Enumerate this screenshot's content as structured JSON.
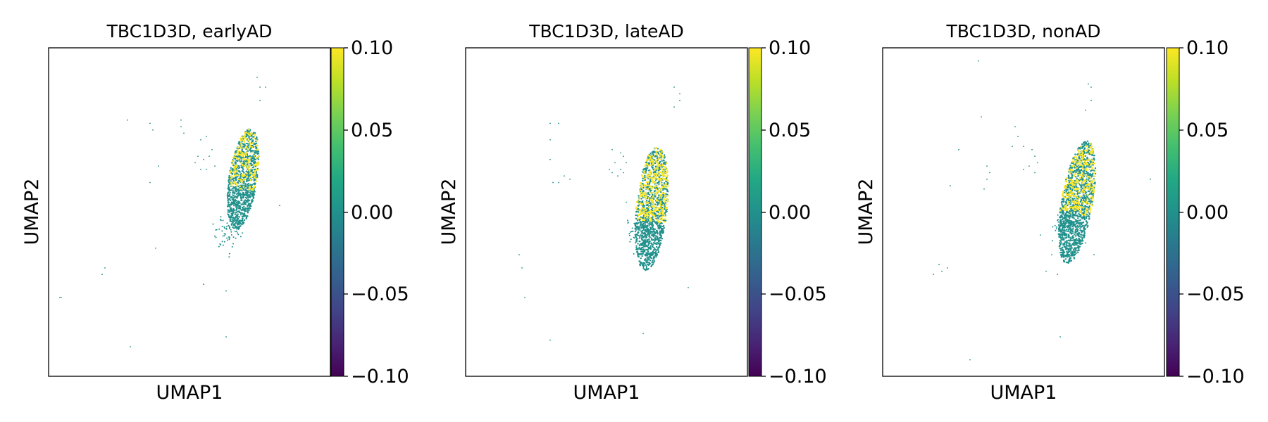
{
  "panels": [
    {
      "title": "TBC1D3D, earlyAD",
      "xlabel": "UMAP1",
      "ylabel": "UMAP2",
      "colorbar": {
        "ticks": [
          "0.10",
          "0.05",
          "0.00",
          "−0.05",
          "−0.10"
        ]
      }
    },
    {
      "title": "TBC1D3D, lateAD",
      "xlabel": "UMAP1",
      "ylabel": "UMAP2",
      "colorbar": {
        "ticks": [
          "0.10",
          "0.05",
          "0.00",
          "−0.05",
          "−0.10"
        ]
      }
    },
    {
      "title": "TBC1D3D, nonAD",
      "xlabel": "UMAP1",
      "ylabel": "UMAP2",
      "colorbar": {
        "ticks": [
          "0.10",
          "0.05",
          "0.00",
          "−0.05",
          "−0.10"
        ]
      }
    }
  ],
  "chart_data": [
    {
      "type": "scatter",
      "title": "TBC1D3D, earlyAD",
      "xlabel": "UMAP1",
      "ylabel": "UMAP2",
      "xlim": [
        0,
        10
      ],
      "ylim": [
        0,
        10
      ],
      "color_scale": {
        "colormap": "viridis",
        "min": -0.1,
        "max": 0.1,
        "ticks": [
          0.1,
          0.05,
          0.0,
          -0.05,
          -0.1
        ]
      },
      "colors": {
        "zero": "#21918c",
        "high": "#fde725"
      },
      "main_cluster": {
        "center": [
          6.9,
          6.0
        ],
        "radius_x": 0.5,
        "radius_y": 1.55,
        "tilt": 0.18,
        "n_points": 1200,
        "high_fraction": 0.12,
        "tail": [
          6.2,
          4.2
        ]
      },
      "scattered_points": [
        [
          7.4,
          9.1
        ],
        [
          7.5,
          8.8
        ],
        [
          7.7,
          8.8
        ],
        [
          7.5,
          8.4
        ],
        [
          2.8,
          7.8
        ],
        [
          3.6,
          7.7
        ],
        [
          3.7,
          7.5
        ],
        [
          4.7,
          7.8
        ],
        [
          4.7,
          7.6
        ],
        [
          4.8,
          7.4
        ],
        [
          5.4,
          7.2
        ],
        [
          5.6,
          7.3
        ],
        [
          5.3,
          6.7
        ],
        [
          5.5,
          6.6
        ],
        [
          5.7,
          6.7
        ],
        [
          5.8,
          6.9
        ],
        [
          5.2,
          6.5
        ],
        [
          5.4,
          6.3
        ],
        [
          5.6,
          6.3
        ],
        [
          5.9,
          6.4
        ],
        [
          3.9,
          6.4
        ],
        [
          3.6,
          5.9
        ],
        [
          8.2,
          5.2
        ],
        [
          3.8,
          3.9
        ],
        [
          2.0,
          3.3
        ],
        [
          1.9,
          3.1
        ],
        [
          0.4,
          2.4
        ],
        [
          0.45,
          2.4
        ],
        [
          5.5,
          2.8
        ],
        [
          6.3,
          2.6
        ],
        [
          6.3,
          1.2
        ],
        [
          2.9,
          0.9
        ]
      ]
    },
    {
      "type": "scatter",
      "title": "TBC1D3D, lateAD",
      "xlabel": "UMAP1",
      "ylabel": "UMAP2",
      "xlim": [
        0,
        10
      ],
      "ylim": [
        0,
        10
      ],
      "color_scale": {
        "colormap": "viridis",
        "min": -0.1,
        "max": 0.1,
        "ticks": [
          0.1,
          0.05,
          0.0,
          -0.05,
          -0.1
        ]
      },
      "colors": {
        "zero": "#21918c",
        "high": "#fde725"
      },
      "main_cluster": {
        "center": [
          6.6,
          5.1
        ],
        "radius_x": 0.55,
        "radius_y": 1.9,
        "tilt": 0.12,
        "n_points": 1500,
        "high_fraction": 0.16,
        "tail": [
          6.0,
          4.3
        ]
      },
      "scattered_points": [
        [
          7.4,
          8.8
        ],
        [
          7.6,
          8.6
        ],
        [
          7.6,
          8.4
        ],
        [
          7.4,
          8.2
        ],
        [
          3.0,
          7.7
        ],
        [
          3.3,
          7.7
        ],
        [
          3.0,
          7.2
        ],
        [
          3.0,
          6.6
        ],
        [
          3.5,
          6.1
        ],
        [
          3.7,
          6.0
        ],
        [
          3.1,
          5.9
        ],
        [
          3.3,
          5.9
        ],
        [
          5.2,
          6.9
        ],
        [
          5.5,
          6.8
        ],
        [
          5.6,
          6.7
        ],
        [
          5.3,
          6.5
        ],
        [
          5.5,
          6.3
        ],
        [
          5.4,
          6.1
        ],
        [
          5.6,
          6.2
        ],
        [
          5.7,
          6.5
        ],
        [
          5.1,
          6.3
        ],
        [
          5.2,
          6.2
        ],
        [
          5.7,
          5.3
        ],
        [
          1.9,
          3.7
        ],
        [
          2.0,
          3.3
        ],
        [
          2.1,
          2.4
        ],
        [
          7.9,
          2.7
        ],
        [
          6.3,
          1.3
        ],
        [
          3.0,
          1.1
        ]
      ]
    },
    {
      "type": "scatter",
      "title": "TBC1D3D, nonAD",
      "xlabel": "UMAP1",
      "ylabel": "UMAP2",
      "xlim": [
        0,
        10
      ],
      "ylim": [
        0,
        10
      ],
      "color_scale": {
        "colormap": "viridis",
        "min": -0.1,
        "max": 0.1,
        "ticks": [
          0.1,
          0.05,
          0.0,
          -0.05,
          -0.1
        ]
      },
      "colors": {
        "zero": "#21918c",
        "high": "#fde725"
      },
      "main_cluster": {
        "center": [
          6.9,
          5.3
        ],
        "radius_x": 0.55,
        "radius_y": 1.9,
        "tilt": 0.2,
        "n_points": 1600,
        "high_fraction": 0.13,
        "tail": [
          6.3,
          4.3
        ]
      },
      "scattered_points": [
        [
          7.3,
          8.9
        ],
        [
          7.4,
          8.8
        ],
        [
          7.4,
          8.4
        ],
        [
          7.2,
          8.1
        ],
        [
          3.4,
          9.6
        ],
        [
          3.5,
          7.9
        ],
        [
          4.7,
          7.6
        ],
        [
          4.8,
          7.3
        ],
        [
          4.6,
          7.0
        ],
        [
          5.0,
          7.0
        ],
        [
          5.3,
          6.9
        ],
        [
          5.4,
          6.7
        ],
        [
          5.5,
          6.5
        ],
        [
          5.2,
          6.4
        ],
        [
          5.4,
          6.2
        ],
        [
          5.0,
          6.3
        ],
        [
          2.7,
          6.9
        ],
        [
          3.7,
          6.4
        ],
        [
          3.8,
          6.2
        ],
        [
          3.7,
          6.0
        ],
        [
          3.6,
          5.7
        ],
        [
          2.4,
          5.8
        ],
        [
          9.5,
          6.0
        ],
        [
          2.0,
          3.4
        ],
        [
          2.1,
          3.2
        ],
        [
          2.3,
          3.3
        ],
        [
          1.8,
          3.1
        ],
        [
          5.6,
          4.3
        ],
        [
          6.0,
          3.7
        ],
        [
          5.8,
          3.2
        ],
        [
          6.2,
          3.1
        ],
        [
          7.5,
          3.7
        ],
        [
          6.3,
          1.2
        ],
        [
          3.1,
          0.5
        ]
      ]
    }
  ]
}
